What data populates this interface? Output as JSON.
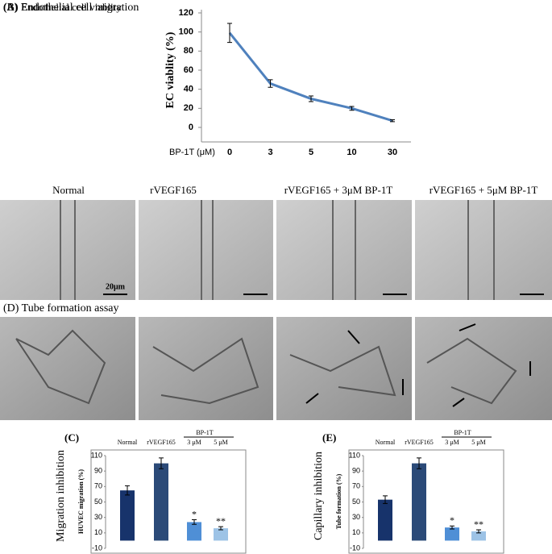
{
  "chart_data": [
    {
      "type": "line",
      "panel": "(A)",
      "title": "Endothelial cell viablity",
      "y_label": "EC viablity (%)",
      "x_label": "BP-1T (μM)",
      "categories": [
        "0",
        "3",
        "5",
        "10",
        "30"
      ],
      "values": [
        99,
        46,
        30,
        20,
        7
      ],
      "errors": [
        10,
        4,
        3,
        2,
        1
      ],
      "color": "#4f81bd",
      "ylim": [
        0,
        120
      ],
      "yticks": [
        0,
        20,
        40,
        60,
        80,
        100,
        120
      ]
    },
    {
      "type": "bar",
      "panel": "(C)",
      "y_label": "Migration inhibition",
      "y_label_inner": "HUVEC migration (%)",
      "group_label": "BP-1T",
      "categories": [
        "Normal",
        "rVEGF165",
        "3 μM",
        "5 μM"
      ],
      "values": [
        65,
        100,
        24,
        16
      ],
      "errors": [
        6,
        7,
        3,
        2
      ],
      "annotations": [
        null,
        null,
        "*",
        "**"
      ],
      "colors": [
        "#17336b",
        "#2b4a78",
        "#4f8fd6",
        "#9dc3e6"
      ],
      "ylim": [
        -10,
        110
      ],
      "yticks": [
        -10,
        10,
        30,
        50,
        70,
        90,
        110
      ]
    },
    {
      "type": "bar",
      "panel": "(E)",
      "y_label": "Capillary inhibition",
      "y_label_inner": "Tube formation (%)",
      "group_label": "BP-1T",
      "categories": [
        "Normal",
        "rVEGF165",
        "3 μM",
        "5 μM"
      ],
      "values": [
        53,
        100,
        17,
        12
      ],
      "errors": [
        5,
        7,
        2,
        2
      ],
      "annotations": [
        null,
        null,
        "*",
        "**"
      ],
      "colors": [
        "#17336b",
        "#2b4a78",
        "#4f8fd6",
        "#9dc3e6"
      ],
      "ylim": [
        -10,
        110
      ],
      "yticks": [
        -10,
        10,
        30,
        50,
        70,
        90,
        110
      ]
    }
  ],
  "migration": {
    "title": "(B) Endothelial cell migration",
    "labels": [
      "Normal",
      "rVEGF165",
      "rVEGF165 + 3μM BP-1T",
      "rVEGF165 + 5μM BP-1T"
    ],
    "scale_label": "20μm"
  },
  "tube": {
    "title": "(D) Tube formation assay"
  }
}
